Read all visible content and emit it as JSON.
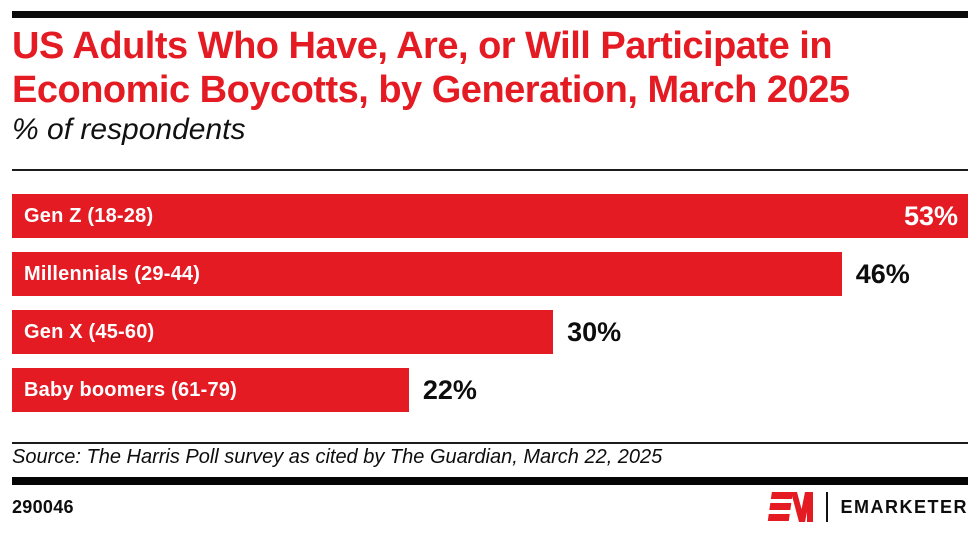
{
  "header": {
    "title_lines": [
      "US Adults Who Have, Are, or Will Participate in",
      "Economic Boycotts, by Generation, March 2025"
    ],
    "subtitle": "% of respondents"
  },
  "chart_data": {
    "type": "bar",
    "orientation": "horizontal",
    "title": "US Adults Who Have, Are, or Will Participate in Economic Boycotts, by Generation, March 2025",
    "subtitle": "% of respondents",
    "categories": [
      "Gen Z (18-28)",
      "Millennials (29-44)",
      "Gen X (45-60)",
      "Baby boomers (61-79)"
    ],
    "values": [
      53,
      46,
      30,
      22
    ],
    "value_labels": [
      "53%",
      "46%",
      "30%",
      "22%"
    ],
    "unit": "%",
    "xlim": [
      0,
      53
    ],
    "grid": false,
    "legend": false,
    "bar_color": "#E41B23",
    "category_label_color": "#FFFFFF",
    "value_label_inside_color": "#FFFFFF",
    "value_label_outside_color": "#0D0D0D"
  },
  "source": {
    "text": "Source: The Harris Poll survey as cited by The Guardian, March 22, 2025"
  },
  "footer": {
    "chart_id": "290046",
    "logo_mark": "EM",
    "wordmark": "EMARKETER"
  },
  "colors": {
    "accent_red": "#E41B23",
    "ink": "#0D0D0D",
    "background": "#FFFFFF"
  }
}
